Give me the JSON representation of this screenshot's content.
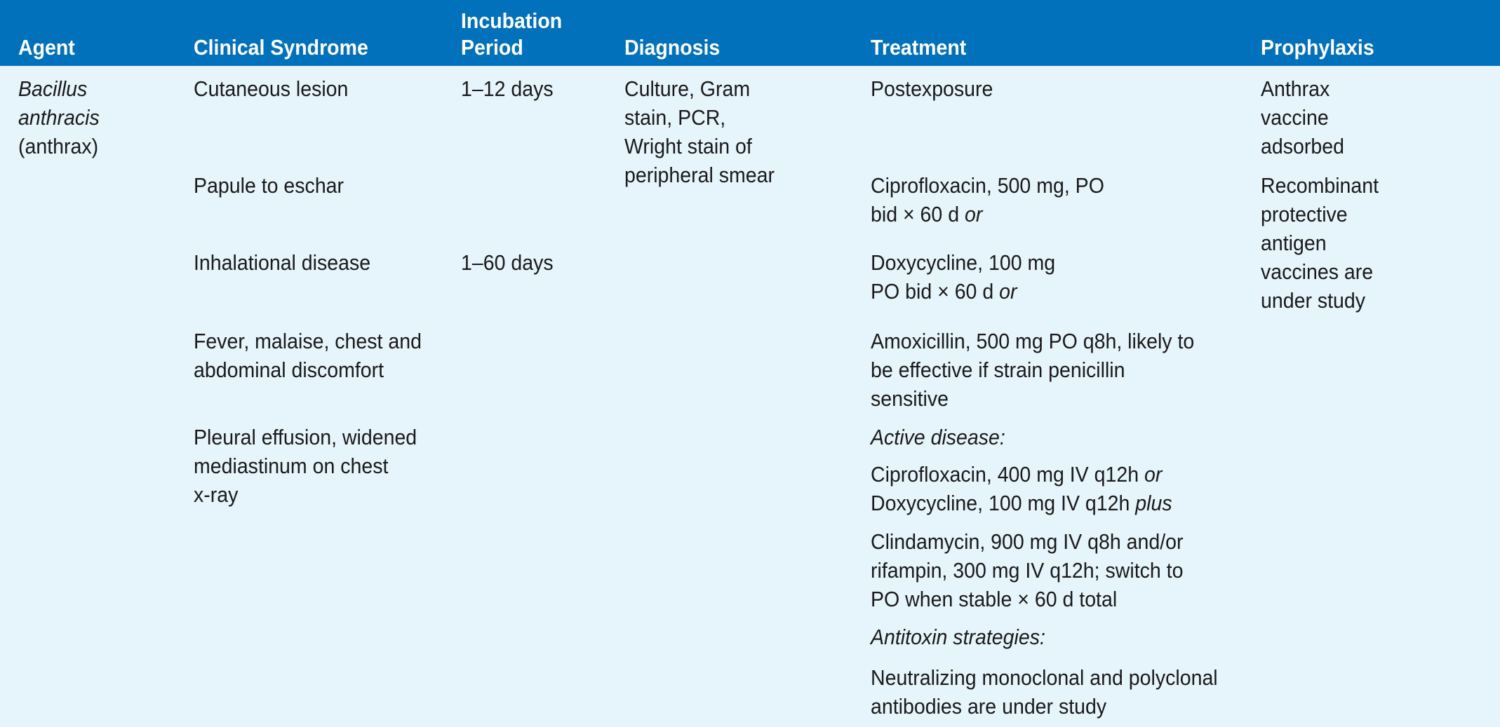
{
  "colors": {
    "header_bg": "#0271bb",
    "body_bg": "#e6f4fb",
    "header_text": "#ffffff",
    "body_text": "#1a1a1a"
  },
  "headers": {
    "agent": "Agent",
    "syndrome": "Clinical Syndrome",
    "incubation_1": "Incubation",
    "incubation_2": "Period",
    "diagnosis": "Diagnosis",
    "treatment": "Treatment",
    "prophylaxis": "Prophylaxis"
  },
  "agent": {
    "line1": "Bacillus",
    "line2": "anthracis",
    "line3": "(anthrax)"
  },
  "syndrome": {
    "s1": "Cutaneous lesion",
    "s2": "Papule to eschar",
    "s3": "Inhalational disease",
    "s4_1": "Fever, malaise, chest and",
    "s4_2": "abdominal discomfort",
    "s5_1": "Pleural effusion, widened",
    "s5_2": "mediastinum on chest",
    "s5_3": "x-ray"
  },
  "incubation": {
    "i1": "1–12 days",
    "i2": "1–60 days"
  },
  "diagnosis": {
    "l1": "Culture, Gram",
    "l2": "stain, PCR,",
    "l3": "Wright stain of",
    "l4": "peripheral smear"
  },
  "treatment": {
    "t1": "Postexposure",
    "t2_1": "Ciprofloxacin, 500 mg, PO",
    "t2_2": "bid × 60 d ",
    "t2_2_it": "or",
    "t3_1": "Doxycycline, 100 mg",
    "t3_2": "PO bid × 60 d ",
    "t3_2_it": "or",
    "t4_1": "Amoxicillin, 500 mg PO q8h, likely to",
    "t4_2": "be effective if strain penicillin",
    "t4_3": "sensitive",
    "t5": "Active disease:",
    "t6_1": "Ciprofloxacin, 400 mg IV q12h ",
    "t6_1_it": "or",
    "t6_2": "Doxycycline, 100 mg IV q12h ",
    "t6_2_it": "plus",
    "t7_1": "Clindamycin, 900 mg IV q8h and/or",
    "t7_2": "rifampin, 300 mg IV q12h; switch to",
    "t7_3": "PO when stable × 60 d total",
    "t8": "Antitoxin strategies:",
    "t9_1": "Neutralizing monoclonal and polyclonal",
    "t9_2": "antibodies are under study"
  },
  "prophylaxis": {
    "p1_1": "Anthrax",
    "p1_2": "vaccine",
    "p1_3": "adsorbed",
    "p2_1": "Recombinant",
    "p2_2": "protective",
    "p2_3": "antigen",
    "p2_4": "vaccines are",
    "p2_5": "under study"
  }
}
